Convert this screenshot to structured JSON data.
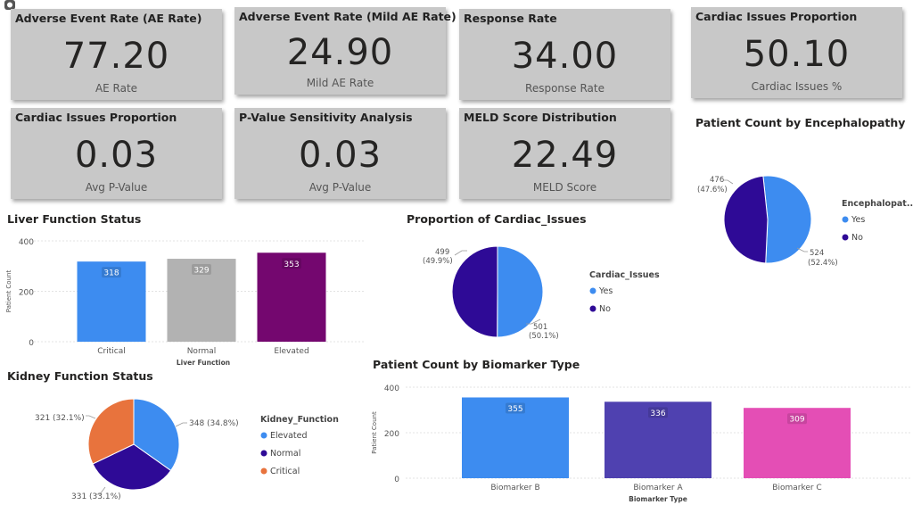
{
  "kpi_cards": [
    {
      "title": "Adverse Event Rate (AE Rate)",
      "value": "77.20",
      "label": "AE Rate"
    },
    {
      "title": "Adverse Event Rate (Mild AE Rate)",
      "value": "24.90",
      "label": "Mild AE Rate"
    },
    {
      "title": "Response Rate",
      "value": "34.00",
      "label": "Response Rate"
    },
    {
      "title": "Cardiac Issues Proportion",
      "value": "50.10",
      "label": "Cardiac Issues %"
    },
    {
      "title": "Cardiac Issues Proportion",
      "value": "0.03",
      "label": "Avg P-Value"
    },
    {
      "title": "P-Value Sensitivity Analysis",
      "value": "0.03",
      "label": "Avg P-Value"
    },
    {
      "title": "MELD Score Distribution",
      "value": "22.49",
      "label": "MELD Score"
    }
  ],
  "colors": {
    "blue": "#3d8cf0",
    "gray": "#b2b2b2",
    "purple": "#74076f",
    "navy": "#2e0a96",
    "orange": "#e8733d",
    "mediumblue": "#4f41b0",
    "pink": "#e44eb5"
  },
  "chart_data": [
    {
      "id": "liver",
      "type": "bar",
      "title": "Liver Function Status",
      "xlabel": "Liver Function",
      "ylabel": "Patient Count",
      "ylim": [
        0,
        400
      ],
      "yticks": [
        "0",
        "200",
        "400"
      ],
      "categories": [
        "Critical",
        "Normal",
        "Elevated"
      ],
      "values": [
        318,
        329,
        353
      ],
      "labels": [
        "318",
        "329",
        "353"
      ],
      "colors": [
        "#3d8cf0",
        "#b2b2b2",
        "#74076f"
      ]
    },
    {
      "id": "cardiac",
      "type": "pie",
      "title": "Proportion of Cardiac_Issues",
      "legend_title": "Cardiac_Issues",
      "categories": [
        "Yes",
        "No"
      ],
      "values": [
        501,
        499
      ],
      "label_counts": [
        "501",
        "499"
      ],
      "label_pcts": [
        "(50.1%)",
        "(49.9%)"
      ],
      "colors": [
        "#3d8cf0",
        "#2e0a96"
      ]
    },
    {
      "id": "enceph",
      "type": "pie",
      "title": "Patient Count by Encephalopathy",
      "legend_title": "Encephalopat...",
      "categories": [
        "Yes",
        "No"
      ],
      "values": [
        524,
        476
      ],
      "label_counts": [
        "524",
        "476"
      ],
      "label_pcts": [
        "(52.4%)",
        "(47.6%)"
      ],
      "colors": [
        "#3d8cf0",
        "#2e0a96"
      ]
    },
    {
      "id": "kidney",
      "type": "pie",
      "title": "Kidney Function Status",
      "legend_title": "Kidney_Function",
      "categories": [
        "Elevated",
        "Normal",
        "Critical"
      ],
      "values": [
        348,
        331,
        321
      ],
      "labels": [
        "348 (34.8%)",
        "331 (33.1%)",
        "321 (32.1%)"
      ],
      "colors": [
        "#3d8cf0",
        "#2e0a96",
        "#e8733d"
      ]
    },
    {
      "id": "biomarker",
      "type": "bar",
      "title": "Patient Count by Biomarker Type",
      "xlabel": "Biomarker Type",
      "ylabel": "Patient Count",
      "ylim": [
        0,
        400
      ],
      "yticks": [
        "0",
        "200",
        "400"
      ],
      "categories": [
        "Biomarker B",
        "Biomarker A",
        "Biomarker C"
      ],
      "values": [
        355,
        336,
        309
      ],
      "labels": [
        "355",
        "336",
        "309"
      ],
      "colors": [
        "#3d8cf0",
        "#4f41b0",
        "#e44eb5"
      ]
    }
  ]
}
